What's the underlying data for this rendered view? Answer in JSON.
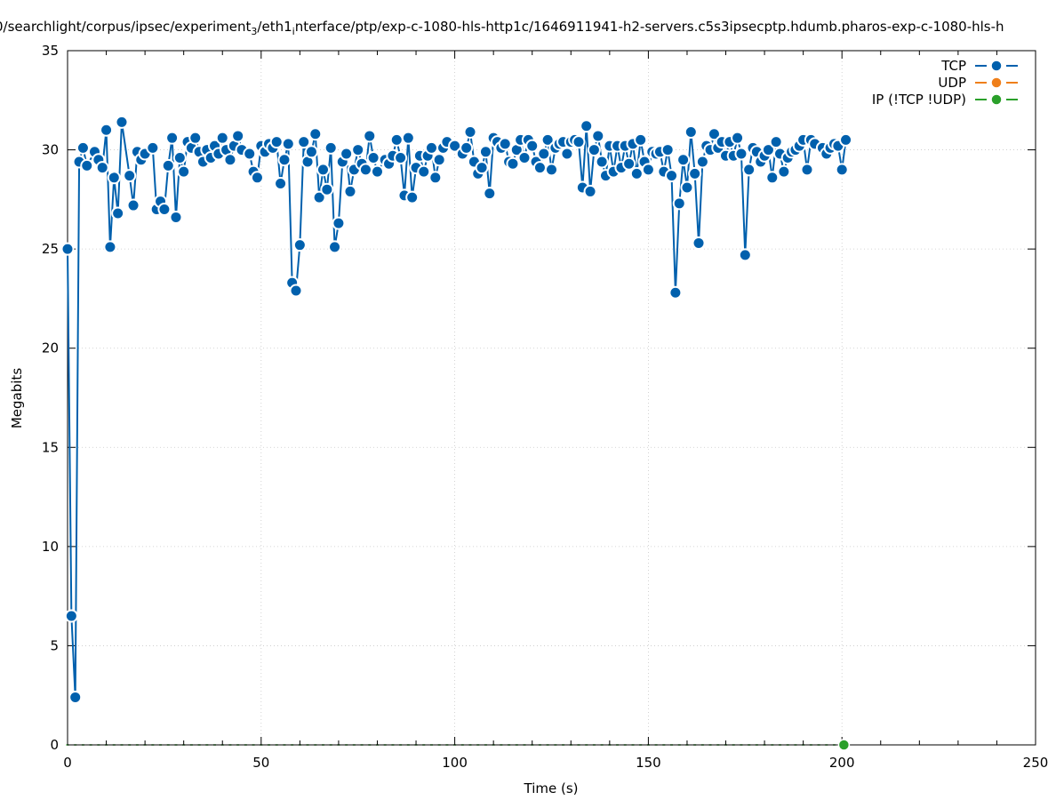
{
  "chart_data": {
    "type": "line",
    "title_parts": [
      "0/searchlight/corpus/ipsec/experiment",
      "3",
      "/eth1",
      "i",
      "nterface/ptp/exp-c-1080-hls-http1c/1646911941-h2-servers.c5s3ipsecptp.hdumb.pharos-exp-c-1080-hls-h"
    ],
    "xlabel": "Time (s)",
    "ylabel": "Megabits",
    "xlim": [
      0,
      250
    ],
    "ylim": [
      0,
      35
    ],
    "x_ticks": [
      0,
      50,
      100,
      150,
      200,
      250
    ],
    "y_ticks": [
      0,
      5,
      10,
      15,
      20,
      25,
      30,
      35
    ],
    "x_tick_labels": [
      "0",
      "50",
      "100",
      "150",
      "200",
      "250"
    ],
    "y_tick_labels": [
      "0",
      "5",
      "10",
      "15",
      "20",
      "25",
      "30",
      "35"
    ],
    "grid": true,
    "legend_position": "top-right",
    "legend": [
      "TCP",
      "UDP",
      "IP (!TCP  !UDP)"
    ],
    "series": [
      {
        "name": "TCP",
        "color": "#0060ad",
        "points": [
          [
            0,
            25.0
          ],
          [
            1,
            6.5
          ],
          [
            2,
            2.4
          ],
          [
            3,
            29.4
          ],
          [
            4,
            30.1
          ],
          [
            5,
            29.2
          ],
          [
            7,
            29.9
          ],
          [
            8,
            29.5
          ],
          [
            9,
            29.1
          ],
          [
            10,
            31.0
          ],
          [
            11,
            25.1
          ],
          [
            12,
            28.6
          ],
          [
            13,
            26.8
          ],
          [
            14,
            31.4
          ],
          [
            16,
            28.7
          ],
          [
            17,
            27.2
          ],
          [
            18,
            29.9
          ],
          [
            19,
            29.5
          ],
          [
            20,
            29.8
          ],
          [
            22,
            30.1
          ],
          [
            23,
            27.0
          ],
          [
            24,
            27.4
          ],
          [
            25,
            27.0
          ],
          [
            26,
            29.2
          ],
          [
            27,
            30.6
          ],
          [
            28,
            26.6
          ],
          [
            29,
            29.6
          ],
          [
            30,
            28.9
          ],
          [
            31,
            30.4
          ],
          [
            32,
            30.1
          ],
          [
            33,
            30.6
          ],
          [
            34,
            29.9
          ],
          [
            35,
            29.4
          ],
          [
            36,
            30.0
          ],
          [
            37,
            29.6
          ],
          [
            38,
            30.2
          ],
          [
            39,
            29.8
          ],
          [
            40,
            30.6
          ],
          [
            41,
            30.0
          ],
          [
            42,
            29.5
          ],
          [
            43,
            30.2
          ],
          [
            44,
            30.7
          ],
          [
            45,
            30.0
          ],
          [
            47,
            29.8
          ],
          [
            48,
            28.9
          ],
          [
            49,
            28.6
          ],
          [
            50,
            30.2
          ],
          [
            51,
            29.9
          ],
          [
            52,
            30.3
          ],
          [
            53,
            30.1
          ],
          [
            54,
            30.4
          ],
          [
            55,
            28.3
          ],
          [
            56,
            29.5
          ],
          [
            57,
            30.3
          ],
          [
            58,
            23.3
          ],
          [
            59,
            22.9
          ],
          [
            60,
            25.2
          ],
          [
            61,
            30.4
          ],
          [
            62,
            29.4
          ],
          [
            63,
            29.9
          ],
          [
            64,
            30.8
          ],
          [
            65,
            27.6
          ],
          [
            66,
            29.0
          ],
          [
            67,
            28.0
          ],
          [
            68,
            30.1
          ],
          [
            69,
            25.1
          ],
          [
            70,
            26.3
          ],
          [
            71,
            29.4
          ],
          [
            72,
            29.8
          ],
          [
            73,
            27.9
          ],
          [
            74,
            29.0
          ],
          [
            75,
            30.0
          ],
          [
            76,
            29.3
          ],
          [
            77,
            29.0
          ],
          [
            78,
            30.7
          ],
          [
            79,
            29.6
          ],
          [
            80,
            28.9
          ],
          [
            82,
            29.5
          ],
          [
            83,
            29.3
          ],
          [
            84,
            29.7
          ],
          [
            85,
            30.5
          ],
          [
            86,
            29.6
          ],
          [
            87,
            27.7
          ],
          [
            88,
            30.6
          ],
          [
            89,
            27.6
          ],
          [
            90,
            29.1
          ],
          [
            91,
            29.7
          ],
          [
            92,
            28.9
          ],
          [
            93,
            29.7
          ],
          [
            94,
            30.1
          ],
          [
            95,
            28.6
          ],
          [
            96,
            29.5
          ],
          [
            97,
            30.1
          ],
          [
            98,
            30.4
          ],
          [
            100,
            30.2
          ],
          [
            102,
            29.8
          ],
          [
            103,
            30.1
          ],
          [
            104,
            30.9
          ],
          [
            105,
            29.4
          ],
          [
            106,
            28.8
          ],
          [
            107,
            29.1
          ],
          [
            108,
            29.9
          ],
          [
            109,
            27.8
          ],
          [
            110,
            30.6
          ],
          [
            111,
            30.4
          ],
          [
            112,
            30.1
          ],
          [
            113,
            30.3
          ],
          [
            114,
            29.4
          ],
          [
            115,
            29.3
          ],
          [
            116,
            30.0
          ],
          [
            117,
            30.5
          ],
          [
            118,
            29.6
          ],
          [
            119,
            30.5
          ],
          [
            120,
            30.2
          ],
          [
            121,
            29.4
          ],
          [
            122,
            29.1
          ],
          [
            123,
            29.8
          ],
          [
            124,
            30.5
          ],
          [
            125,
            29.0
          ],
          [
            126,
            30.1
          ],
          [
            127,
            30.3
          ],
          [
            128,
            30.4
          ],
          [
            129,
            29.8
          ],
          [
            130,
            30.4
          ],
          [
            131,
            30.5
          ],
          [
            132,
            30.4
          ],
          [
            133,
            28.1
          ],
          [
            134,
            31.2
          ],
          [
            135,
            27.9
          ],
          [
            136,
            30.0
          ],
          [
            137,
            30.7
          ],
          [
            138,
            29.4
          ],
          [
            139,
            28.7
          ],
          [
            140,
            30.2
          ],
          [
            141,
            28.9
          ],
          [
            142,
            30.2
          ],
          [
            143,
            29.1
          ],
          [
            144,
            30.2
          ],
          [
            145,
            29.3
          ],
          [
            146,
            30.3
          ],
          [
            147,
            28.8
          ],
          [
            148,
            30.5
          ],
          [
            149,
            29.4
          ],
          [
            150,
            29.0
          ],
          [
            151,
            29.9
          ],
          [
            152,
            29.8
          ],
          [
            153,
            29.9
          ],
          [
            154,
            28.9
          ],
          [
            155,
            30.0
          ],
          [
            156,
            28.7
          ],
          [
            157,
            22.8
          ],
          [
            158,
            27.3
          ],
          [
            159,
            29.5
          ],
          [
            160,
            28.1
          ],
          [
            161,
            30.9
          ],
          [
            162,
            28.8
          ],
          [
            163,
            25.3
          ],
          [
            164,
            29.4
          ],
          [
            165,
            30.2
          ],
          [
            166,
            30.0
          ],
          [
            167,
            30.8
          ],
          [
            168,
            30.1
          ],
          [
            169,
            30.4
          ],
          [
            170,
            29.7
          ],
          [
            171,
            30.4
          ],
          [
            172,
            29.7
          ],
          [
            173,
            30.6
          ],
          [
            174,
            29.8
          ],
          [
            175,
            24.7
          ],
          [
            176,
            29.0
          ],
          [
            177,
            30.1
          ],
          [
            178,
            29.9
          ],
          [
            179,
            29.4
          ],
          [
            180,
            29.7
          ],
          [
            181,
            30.0
          ],
          [
            182,
            28.6
          ],
          [
            183,
            30.4
          ],
          [
            184,
            29.8
          ],
          [
            185,
            28.9
          ],
          [
            186,
            29.6
          ],
          [
            187,
            29.9
          ],
          [
            188,
            30.0
          ],
          [
            189,
            30.2
          ],
          [
            190,
            30.5
          ],
          [
            191,
            29.0
          ],
          [
            192,
            30.5
          ],
          [
            193,
            30.3
          ],
          [
            195,
            30.1
          ],
          [
            196,
            29.8
          ],
          [
            197,
            30.1
          ],
          [
            198,
            30.3
          ],
          [
            199,
            30.2
          ],
          [
            200,
            29.0
          ],
          [
            201,
            30.5
          ]
        ]
      },
      {
        "name": "UDP",
        "color": "#ef7f1a",
        "points": []
      },
      {
        "name": "IP (!TCP  !UDP)",
        "color": "#2aa02a",
        "points": [
          [
            200.5,
            0
          ]
        ],
        "baseline": [
          0,
          201
        ],
        "baseline_step": 2
      }
    ]
  }
}
